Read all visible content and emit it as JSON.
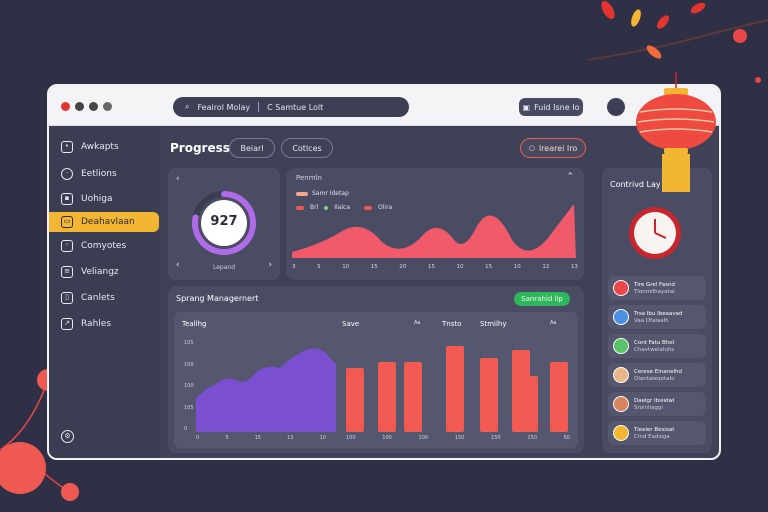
{
  "window": {
    "search_primary": "Feairol Molay",
    "search_secondary": "C Samtue Lolt",
    "toolbar_button": "Fuid Isne Io"
  },
  "sidebar": {
    "items": [
      {
        "label": "Awkapts",
        "icon": "grid-icon"
      },
      {
        "label": "Eetlions",
        "icon": "clock-icon"
      },
      {
        "label": "Uohiga",
        "icon": "chart-icon"
      },
      {
        "label": "Deahavlaan",
        "icon": "folder-icon",
        "active": true
      },
      {
        "label": "Comyotes",
        "icon": "users-icon"
      },
      {
        "label": "Veliangz",
        "icon": "list-icon"
      },
      {
        "label": "Canlets",
        "icon": "document-icon"
      },
      {
        "label": "Rahles",
        "icon": "graph-icon"
      }
    ],
    "footer_icon": "settings-icon"
  },
  "main": {
    "title": "Progress",
    "pill_1": "Beiarl",
    "pill_2": "Cotlces",
    "action_pill": "Irearei Iro"
  },
  "progress_card": {
    "value": "927",
    "label": "Lepand",
    "ring_fraction": 0.78,
    "ring_colors": [
      "#f0486b",
      "#f59b3a",
      "#f6d64a",
      "#7ad27e",
      "#6c6fe8",
      "#b06ce8"
    ]
  },
  "wave_card": {
    "title": "Penmln",
    "legend_main": "Samr Idetap",
    "legend_items": [
      "Brl",
      "Ilalca",
      "Olira"
    ],
    "x_ticks": [
      "3",
      "5",
      "10",
      "15",
      "20",
      "15",
      "10",
      "15",
      "10",
      "12",
      "13"
    ]
  },
  "mgmt_card": {
    "title": "Sprang Managernert",
    "button": "Sanrahid llp",
    "section_labels": [
      "Teallhg",
      "Save",
      "Tnsto",
      "Stmilhy"
    ],
    "area_y_ticks": [
      "105",
      "100",
      "100",
      "105",
      "0"
    ],
    "area_x_ticks": [
      "0",
      "5",
      "15",
      "13",
      "10"
    ],
    "bar_x_ticks": [
      "100",
      "100",
      "100",
      "150",
      "150",
      "150",
      "50"
    ],
    "area_fill": "#7a4fd0",
    "bar_fill": "#f05a52"
  },
  "right_panel": {
    "title": "Contrivd Lay",
    "contacts": [
      {
        "name": "Tire Grel Fasnd",
        "sub": "Tlonmilhayetal"
      },
      {
        "name": "Trsa Ibu Ibeaavad",
        "sub": "Vaa Dfalaalh"
      },
      {
        "name": "Cont Fatu Bhel",
        "sub": "Chavtwelaluhs"
      },
      {
        "name": "Cerese Einanelhd",
        "sub": "Olantaieqotalo"
      },
      {
        "name": "Daelgr Ibsielwl",
        "sub": "Sroinliaggi"
      },
      {
        "name": "Tieeler Besisat",
        "sub": "Cind Eadsiga"
      }
    ]
  }
}
